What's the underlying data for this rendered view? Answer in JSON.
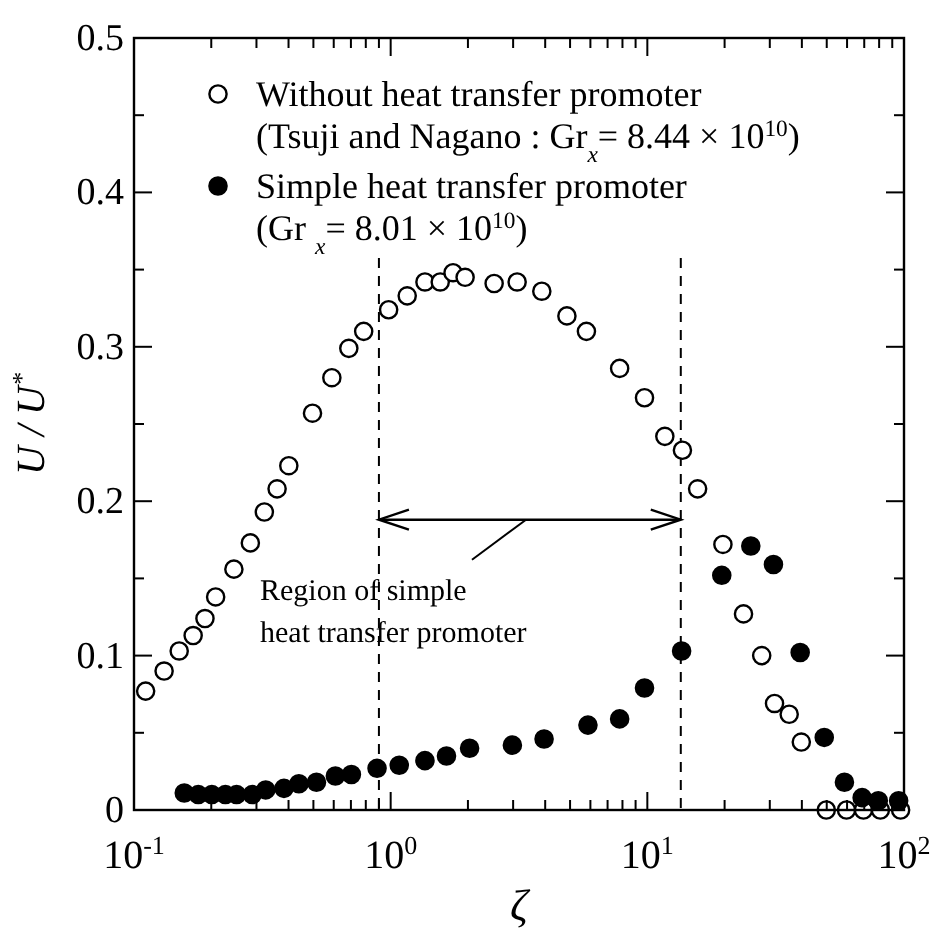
{
  "chart_data": {
    "type": "scatter",
    "xlabel": "ζ",
    "ylabel": "U / U$^{*}$",
    "log": "x",
    "xlim": [
      0.1,
      100
    ],
    "ylim": [
      0,
      0.5
    ],
    "xticks": [
      {
        "value": 0.1,
        "label": "10$^{-1}$"
      },
      {
        "value": 0.2,
        "label": null
      },
      {
        "value": 0.3,
        "label": null
      },
      {
        "value": 0.4,
        "label": null
      },
      {
        "value": 0.5,
        "label": null
      },
      {
        "value": 0.6,
        "label": null
      },
      {
        "value": 0.7,
        "label": null
      },
      {
        "value": 0.8,
        "label": null
      },
      {
        "value": 0.9,
        "label": null
      },
      {
        "value": 1,
        "label": "10$^{0}$"
      },
      {
        "value": 2,
        "label": null
      },
      {
        "value": 3,
        "label": null
      },
      {
        "value": 4,
        "label": null
      },
      {
        "value": 5,
        "label": null
      },
      {
        "value": 6,
        "label": null
      },
      {
        "value": 7,
        "label": null
      },
      {
        "value": 8,
        "label": null
      },
      {
        "value": 9,
        "label": null
      },
      {
        "value": 10,
        "label": "10$^{1}$"
      },
      {
        "value": 20,
        "label": null
      },
      {
        "value": 30,
        "label": null
      },
      {
        "value": 40,
        "label": null
      },
      {
        "value": 50,
        "label": null
      },
      {
        "value": 60,
        "label": null
      },
      {
        "value": 70,
        "label": null
      },
      {
        "value": 80,
        "label": null
      },
      {
        "value": 90,
        "label": null
      },
      {
        "value": 100,
        "label": "10$^{2}$"
      }
    ],
    "yticks": [
      0,
      0.1,
      0.2,
      0.3,
      0.4,
      0.5
    ],
    "grid": false,
    "legend": "top left",
    "marker": "circle",
    "series": [
      {
        "name": "Without heat transfer promoter (Tsuji and Nagano : Gr$_{x}$= 8.44 × 10$^{10}$)",
        "color": "#ffffff",
        "x": [
          0.111,
          0.131,
          0.15,
          0.17,
          0.189,
          0.208,
          0.245,
          0.284,
          0.322,
          0.361,
          0.401,
          0.496,
          0.59,
          0.687,
          0.785,
          0.982,
          1.16,
          1.36,
          1.56,
          1.75,
          1.95,
          2.53,
          3.11,
          3.88,
          4.86,
          5.79,
          7.8,
          9.75,
          11.7,
          13.7,
          15.7,
          19.7,
          23.7,
          27.9,
          31.3,
          35.7,
          39.8,
          49.8,
          59.7,
          69.5,
          80.9,
          97
        ],
        "values": [
          0.077,
          0.09,
          0.103,
          0.113,
          0.124,
          0.138,
          0.156,
          0.173,
          0.193,
          0.208,
          0.223,
          0.257,
          0.28,
          0.299,
          0.31,
          0.324,
          0.333,
          0.342,
          0.342,
          0.348,
          0.345,
          0.341,
          0.342,
          0.336,
          0.32,
          0.31,
          0.286,
          0.267,
          0.242,
          0.233,
          0.208,
          0.172,
          0.127,
          0.1,
          0.069,
          0.062,
          0.044,
          0,
          0,
          0,
          0,
          0
        ]
      },
      {
        "name": "Simple heat transfer promoter (Gr $_{x}$= 8.01 × 10$^{10}$)",
        "color": "#000000",
        "x": [
          0.157,
          0.178,
          0.201,
          0.227,
          0.251,
          0.289,
          0.326,
          0.384,
          0.439,
          0.514,
          0.609,
          0.703,
          0.885,
          1.08,
          1.36,
          1.65,
          2.03,
          2.98,
          3.96,
          5.87,
          7.8,
          9.75,
          13.6,
          19.5,
          25.3,
          31.0,
          39.4,
          48.9,
          58.6,
          68.7,
          79.4,
          95.3
        ],
        "values": [
          0.011,
          0.01,
          0.01,
          0.01,
          0.01,
          0.01,
          0.013,
          0.014,
          0.017,
          0.018,
          0.022,
          0.023,
          0.027,
          0.029,
          0.032,
          0.035,
          0.04,
          0.042,
          0.046,
          0.055,
          0.059,
          0.079,
          0.103,
          0.152,
          0.171,
          0.159,
          0.102,
          0.047,
          0.018,
          0.008,
          0.006,
          0.006
        ]
      }
    ],
    "ref_lines": [
      {
        "axis": "x",
        "value": 0.9,
        "line_style": "dashed"
      },
      {
        "axis": "x",
        "value": 13.5,
        "line_style": "dashed"
      }
    ],
    "annotations": [
      "Region of simple heat transfer promoter"
    ]
  }
}
